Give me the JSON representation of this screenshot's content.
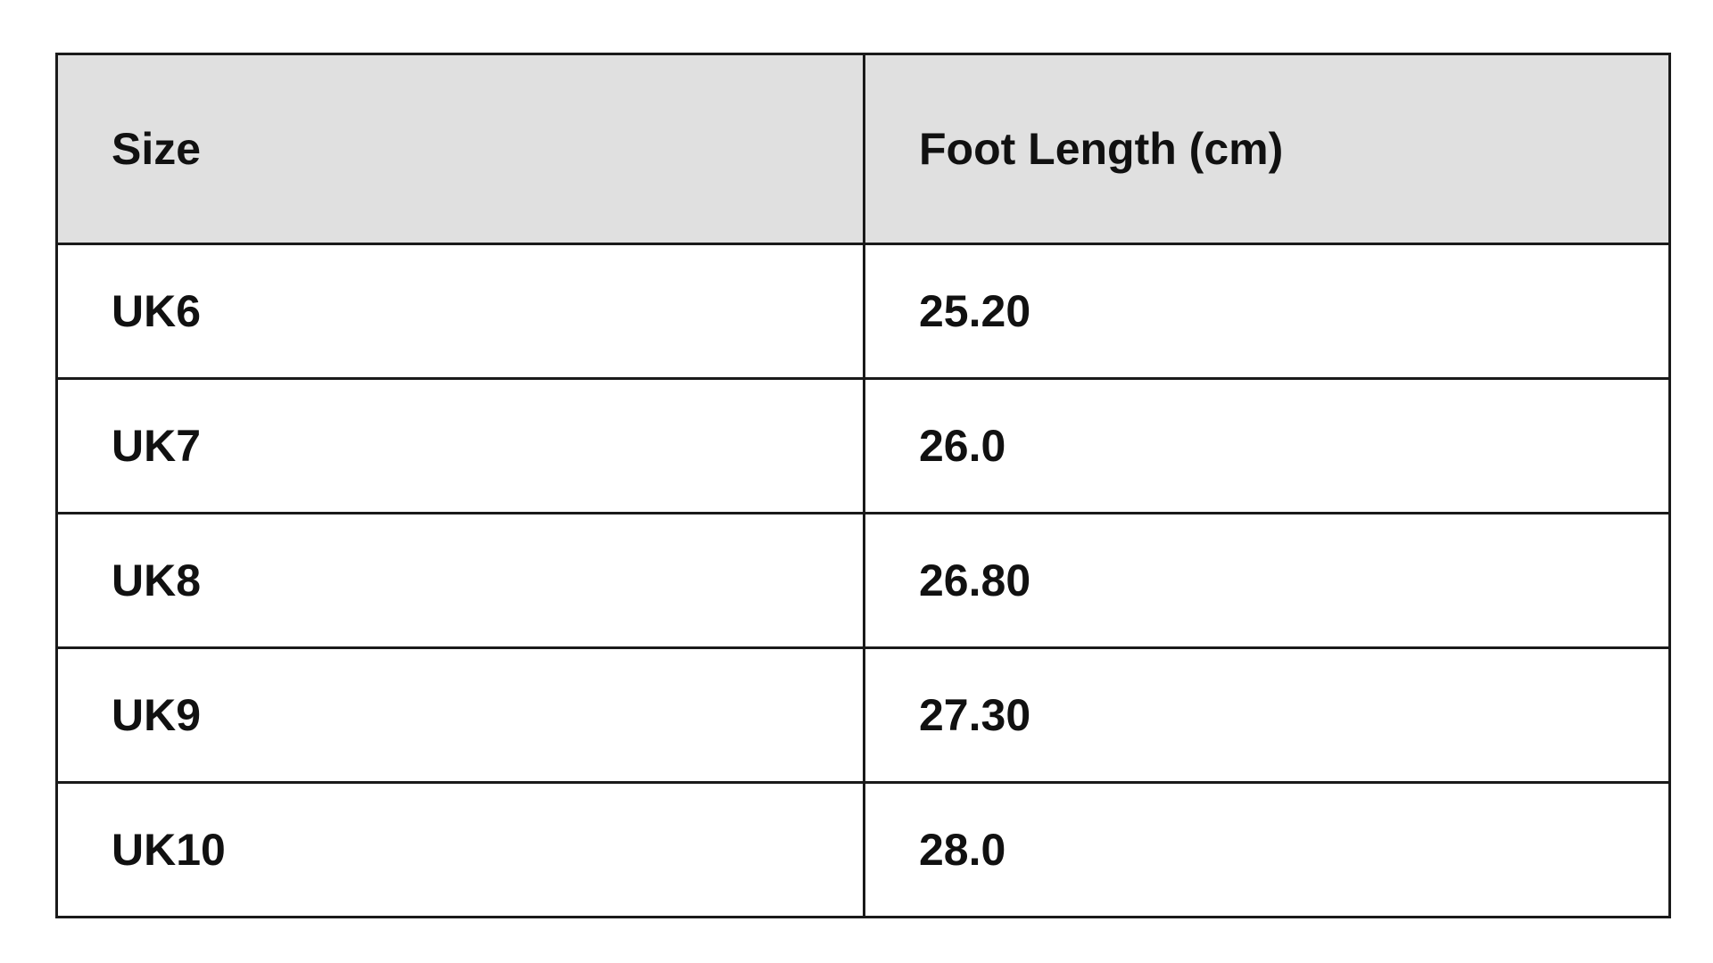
{
  "table": {
    "header": [
      "Size",
      "Foot Length (cm)"
    ],
    "rows": [
      [
        "UK6",
        "25.20"
      ],
      [
        "UK7",
        "26.0"
      ],
      [
        "UK8",
        "26.80"
      ],
      [
        "UK9",
        "27.30"
      ],
      [
        "UK10",
        "28.0"
      ]
    ]
  }
}
